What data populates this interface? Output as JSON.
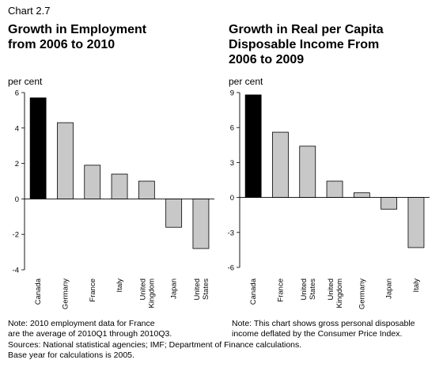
{
  "chart_label": "Chart 2.7",
  "chart_data": [
    {
      "type": "bar",
      "title": "Growth in Employment from 2006 to 2010",
      "title_lines": [
        "Growth in Employment",
        "from 2006 to 2010"
      ],
      "ylabel": "per cent",
      "ylim": [
        -4,
        6
      ],
      "yticks": [
        "-4",
        "-2",
        "0",
        "2",
        "4",
        "6"
      ],
      "categories": [
        "Canada",
        "Germany",
        "France",
        "Italy",
        "United Kingdom",
        "Japan",
        "United States"
      ],
      "category_lines": [
        [
          "Canada"
        ],
        [
          "Germany"
        ],
        [
          "France"
        ],
        [
          "Italy"
        ],
        [
          "United",
          "Kingdom"
        ],
        [
          "Japan"
        ],
        [
          "United",
          "States"
        ]
      ],
      "values": [
        5.7,
        4.3,
        1.9,
        1.4,
        1.0,
        -1.6,
        -2.8
      ],
      "highlight_index": 0,
      "grid": false,
      "note_lines": [
        "Note: 2010 employment data for France",
        "are the average of 2010Q1 through 2010Q3."
      ]
    },
    {
      "type": "bar",
      "title": "Growth in Real per Capita Disposable Income From 2006 to 2009",
      "title_lines": [
        "Growth in Real per Capita",
        "Disposable Income From",
        "2006 to 2009"
      ],
      "ylabel": "per cent",
      "ylim": [
        -6,
        9
      ],
      "yticks": [
        "-6",
        "-3",
        "0",
        "3",
        "6",
        "9"
      ],
      "categories": [
        "Canada",
        "France",
        "United States",
        "United Kingdom",
        "Germany",
        "Japan",
        "Italy"
      ],
      "category_lines": [
        [
          "Canada"
        ],
        [
          "France"
        ],
        [
          "United",
          "States"
        ],
        [
          "United",
          "Kingdom"
        ],
        [
          "Germany"
        ],
        [
          "Japan"
        ],
        [
          "Italy"
        ]
      ],
      "values": [
        8.8,
        5.6,
        4.4,
        1.4,
        0.4,
        -1.0,
        -4.3
      ],
      "highlight_index": 0,
      "grid": false,
      "note_lines": [
        "Note: This chart shows gross personal disposable",
        "income deflated by the Consumer Price Index."
      ]
    }
  ],
  "source_lines": [
    "Sources: National statistical agencies; IMF; Department of Finance calculations.",
    "Base year for calculations is 2005."
  ],
  "colors": {
    "highlight": "#000000",
    "bar": "#c8c8c8",
    "outline": "#000000"
  }
}
